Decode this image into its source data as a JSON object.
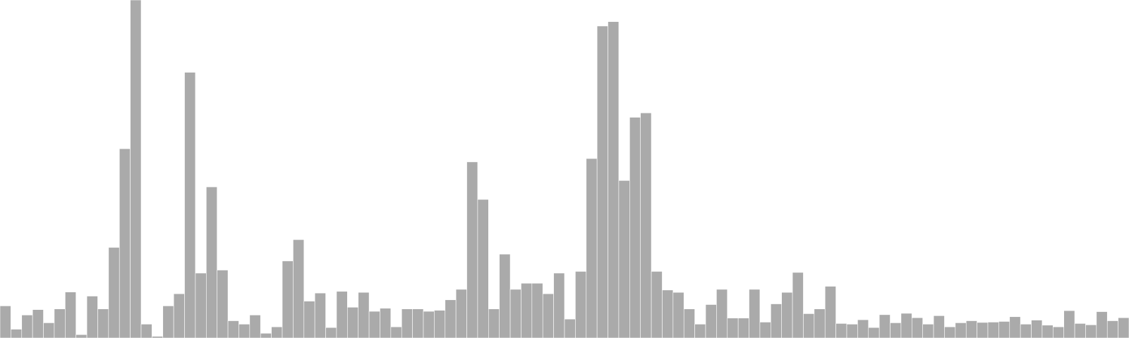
{
  "colors": {
    "bar": "#aaaaaa",
    "background": "#ffffff"
  },
  "chart_data": {
    "type": "bar",
    "title": "",
    "xlabel": "",
    "ylabel": "",
    "grid": false,
    "axes_visible": false,
    "ylim": [
      0,
      100
    ],
    "values": [
      9.5,
      2.6,
      6.8,
      8.4,
      4.5,
      8.6,
      13.6,
      1.0,
      12.4,
      8.6,
      26.8,
      56.0,
      100.0,
      4.1,
      0.5,
      9.5,
      13.1,
      78.6,
      19.2,
      44.7,
      20.1,
      5.1,
      4.1,
      6.8,
      1.4,
      3.3,
      22.8,
      29.1,
      10.9,
      13.3,
      3.1,
      13.8,
      9.1,
      13.5,
      7.9,
      8.8,
      3.3,
      8.6,
      8.6,
      7.9,
      8.2,
      11.3,
      14.4,
      52.1,
      41.0,
      8.6,
      24.8,
      14.4,
      16.2,
      16.2,
      13.1,
      19.2,
      5.6,
      19.7,
      53.1,
      92.3,
      93.6,
      46.6,
      65.3,
      66.6,
      19.7,
      14.2,
      13.5,
      8.6,
      4.1,
      9.9,
      14.4,
      5.9,
      5.9,
      14.4,
      4.7,
      10.1,
      13.5,
      19.4,
      7.2,
      8.6,
      15.3,
      4.3,
      4.1,
      5.4,
      3.1,
      6.9,
      4.5,
      7.3,
      6.0,
      4.1,
      6.6,
      3.3,
      4.5,
      5.1,
      4.6,
      4.7,
      4.9,
      6.3,
      4.1,
      5.3,
      3.8,
      3.3,
      8.1,
      4.3,
      3.9,
      7.8,
      5.1,
      6.0
    ]
  }
}
